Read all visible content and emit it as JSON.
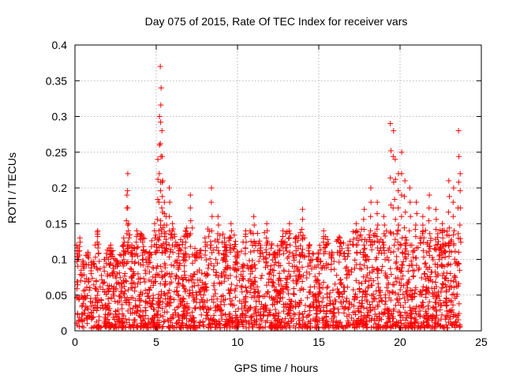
{
  "chart_data": {
    "type": "scatter",
    "title": "Day 075 of 2015, Rate Of TEC Index for receiver vars",
    "xlabel": "GPS time / hours",
    "ylabel": "ROTI / TECUs",
    "xlim": [
      0,
      25
    ],
    "ylim": [
      0,
      0.4
    ],
    "xticks": [
      0,
      5,
      10,
      15,
      20,
      25
    ],
    "xtick_labels": [
      "0",
      "5",
      "10",
      "15",
      "20",
      "25"
    ],
    "yticks": [
      0,
      0.05,
      0.1,
      0.15,
      0.2,
      0.25,
      0.3,
      0.35,
      0.4
    ],
    "ytick_labels": [
      "0",
      "0.05",
      "0.1",
      "0.15",
      "0.2",
      "0.25",
      "0.3",
      "0.35",
      "0.4"
    ],
    "grid": true,
    "marker": "+",
    "color": "#ff0000",
    "series": [
      {
        "name": "ROTI",
        "x": [
          0.1,
          0.2,
          0.3,
          0.5,
          0.8,
          1.0,
          1.4,
          1.8,
          2.2,
          2.6,
          3.0,
          3.2,
          3.25,
          3.3,
          3.5,
          3.8,
          4.2,
          4.6,
          4.9,
          5.1,
          5.2,
          5.25,
          5.3,
          5.35,
          5.4,
          5.5,
          5.6,
          5.8,
          6.0,
          6.4,
          6.8,
          7.1,
          7.5,
          8.0,
          8.4,
          8.8,
          9.2,
          9.6,
          10.0,
          10.5,
          11.0,
          11.4,
          11.8,
          12.3,
          12.8,
          13.2,
          13.6,
          14.0,
          14.4,
          14.9,
          15.3,
          15.8,
          16.3,
          16.8,
          17.3,
          17.8,
          18.2,
          18.6,
          19.0,
          19.4,
          19.6,
          19.7,
          19.9,
          20.1,
          20.3,
          20.6,
          21.0,
          21.4,
          21.8,
          22.2,
          22.6,
          23.0,
          23.3,
          23.6,
          23.7
        ],
        "y": [
          0.12,
          0.1,
          0.13,
          0.09,
          0.11,
          0.08,
          0.14,
          0.1,
          0.12,
          0.09,
          0.13,
          0.19,
          0.22,
          0.15,
          0.12,
          0.14,
          0.13,
          0.11,
          0.15,
          0.24,
          0.3,
          0.37,
          0.34,
          0.28,
          0.21,
          0.18,
          0.16,
          0.2,
          0.15,
          0.12,
          0.14,
          0.19,
          0.11,
          0.13,
          0.2,
          0.16,
          0.13,
          0.15,
          0.11,
          0.14,
          0.16,
          0.12,
          0.15,
          0.11,
          0.14,
          0.15,
          0.13,
          0.17,
          0.12,
          0.1,
          0.14,
          0.11,
          0.13,
          0.12,
          0.15,
          0.17,
          0.2,
          0.18,
          0.16,
          0.29,
          0.28,
          0.24,
          0.22,
          0.25,
          0.21,
          0.2,
          0.18,
          0.16,
          0.19,
          0.17,
          0.15,
          0.21,
          0.2,
          0.28,
          0.22
        ]
      }
    ]
  }
}
